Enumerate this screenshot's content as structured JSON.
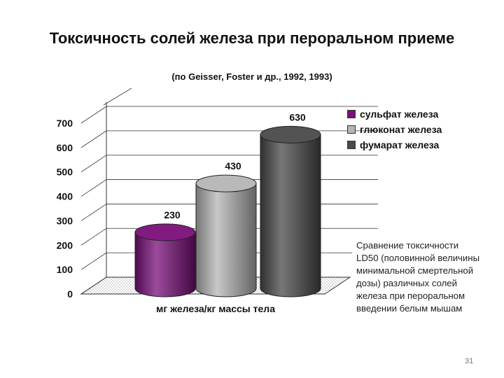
{
  "slide": {
    "title": "Токсичность солей железа при пероральном приеме",
    "subtitle": "(по Geisser, Foster и др., 1992, 1993)",
    "note": "Сравнение токсичности LD50 (половинной величины минимальной смертельной дозы) различных солей железа при пероральном введении белым мышам",
    "page_number": "31"
  },
  "chart_data": {
    "type": "bar",
    "style": "3d-cylinder",
    "title": "",
    "xlabel": "мг железа/кг массы тела",
    "ylabel": "",
    "ylim": [
      0,
      700
    ],
    "yticks": [
      0,
      100,
      200,
      300,
      400,
      500,
      600,
      700
    ],
    "grid": true,
    "legend_position": "top-right",
    "series": [
      {
        "name": "сульфат железа",
        "value": 230,
        "label": "230",
        "color": "#7a0f7a"
      },
      {
        "name": "глюконат железа",
        "value": 430,
        "label": "430",
        "color": "#b5b5b5"
      },
      {
        "name": "фумарат железа",
        "value": 630,
        "label": "630",
        "color": "#4a4a4a"
      }
    ]
  }
}
